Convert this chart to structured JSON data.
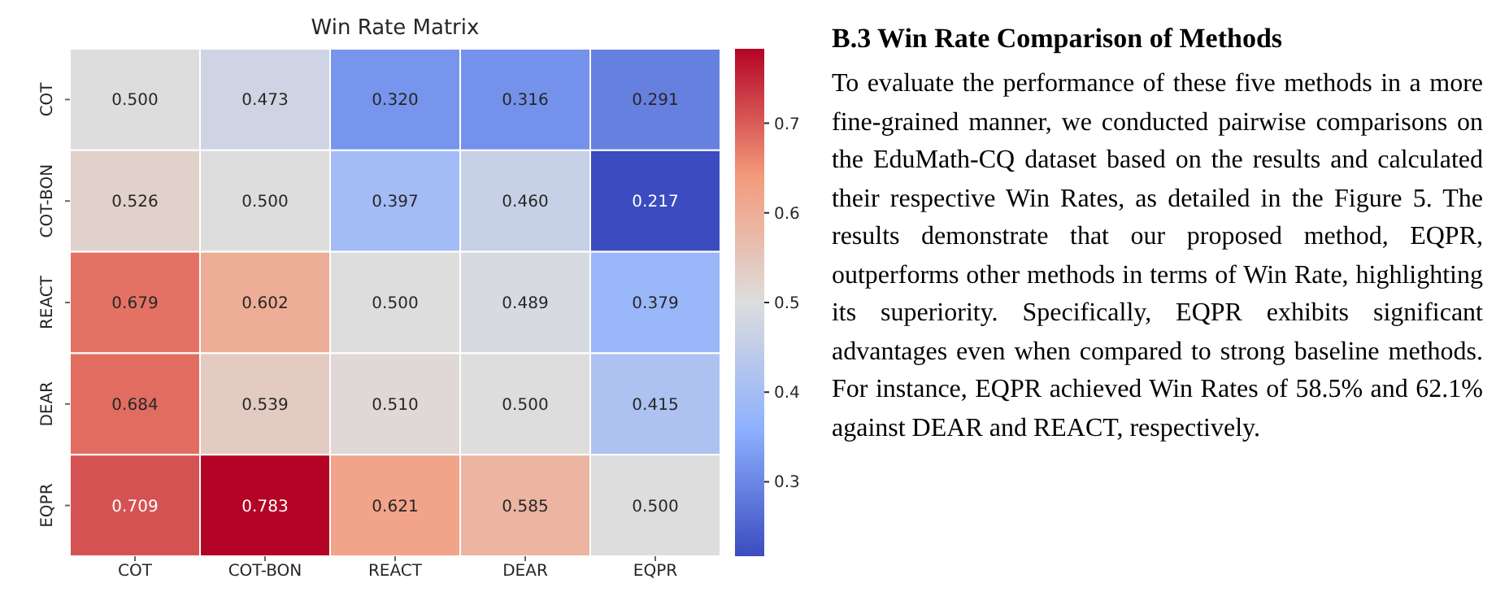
{
  "chart_data": {
    "type": "heatmap",
    "title": "Win Rate Matrix",
    "categories": [
      "COT",
      "COT-BON",
      "REACT",
      "DEAR",
      "EQPR"
    ],
    "y_categories": [
      "COT",
      "COT-BON",
      "REACT",
      "DEAR",
      "EQPR"
    ],
    "cells": [
      [
        0.5,
        0.473,
        0.32,
        0.316,
        0.291
      ],
      [
        0.526,
        0.5,
        0.397,
        0.46,
        0.217
      ],
      [
        0.679,
        0.602,
        0.5,
        0.489,
        0.379
      ],
      [
        0.684,
        0.539,
        0.51,
        0.5,
        0.415
      ],
      [
        0.709,
        0.783,
        0.621,
        0.585,
        0.5
      ]
    ],
    "cell_labels": [
      [
        "0.500",
        "0.473",
        "0.320",
        "0.316",
        "0.291"
      ],
      [
        "0.526",
        "0.500",
        "0.397",
        "0.460",
        "0.217"
      ],
      [
        "0.679",
        "0.602",
        "0.500",
        "0.489",
        "0.379"
      ],
      [
        "0.684",
        "0.539",
        "0.510",
        "0.500",
        "0.415"
      ],
      [
        "0.709",
        "0.783",
        "0.621",
        "0.585",
        "0.500"
      ]
    ],
    "clim": [
      0.217,
      0.783
    ],
    "cticks": [
      0.3,
      0.4,
      0.5,
      0.6,
      0.7
    ],
    "annotations": [
      "B.3 Win Rate Comparison of Methods",
      "To evaluate the performance of these five methods in a more fine-grained manner, we conducted pairwise comparisons on the EduMath-CQ dataset based on the results and calculated their respective Win Rates, as detailed in the Figure 5. The results demonstrate that our proposed method, EQPR, outperforms other methods in terms of Win Rate, highlighting its superiority. Specifically, EQPR exhibits significant advantages even when compared to strong baseline methods. For instance, EQPR achieved Win Rates of 58.5% and 62.1% against DEAR and REACT, respectively."
    ]
  }
}
